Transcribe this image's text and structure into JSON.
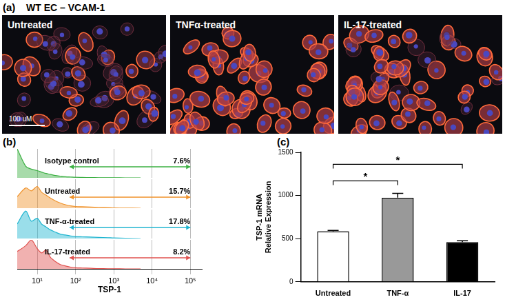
{
  "panel_a": {
    "panel_label": "(a)",
    "title": "WT EC – VCAM-1",
    "images": [
      "Untreated",
      "TNFα-treated",
      "IL-17-treated"
    ],
    "scale_bar": "100 uM"
  },
  "chart_data": [
    {
      "type": "line",
      "panel_label": "(b)",
      "x_label": "TSP-1",
      "log": "x",
      "xlim": [
        3,
        200000
      ],
      "xticks": [
        {
          "value": 10,
          "label": "10¹"
        },
        {
          "value": 100,
          "label": "10²"
        },
        {
          "value": 1000,
          "label": "10³"
        },
        {
          "value": 10000,
          "label": "10⁴"
        },
        {
          "value": 100000,
          "label": "10⁵"
        }
      ],
      "ylim": [
        0,
        100
      ],
      "tick_labels": "x",
      "grid": true,
      "x": [
        3,
        5,
        7,
        10,
        13,
        17,
        22,
        30,
        40,
        55,
        75,
        100,
        150,
        250,
        400,
        700,
        1000,
        2000,
        5000
      ],
      "series": [
        {
          "name": "Isotype control",
          "color": "#3cb043",
          "values": [
            100,
            40,
            30,
            25,
            20,
            15,
            12,
            8,
            6,
            4,
            3,
            2,
            1.5,
            1,
            0.5,
            0.3,
            0.2,
            0,
            0
          ],
          "gate": [
            70,
            100000
          ],
          "gate_percent": {
            "value": 7.6,
            "label": "7.6%"
          }
        },
        {
          "name": "Untreated",
          "color": "#f0932b",
          "values": [
            40,
            70,
            60,
            75,
            55,
            45,
            35,
            25,
            18,
            12,
            8,
            6,
            5,
            4,
            3,
            2,
            1,
            0.5,
            0
          ],
          "gate": [
            70,
            100000
          ],
          "gate_percent": {
            "value": 15.7,
            "label": "15.7%"
          }
        },
        {
          "name": "TNF-α-treated",
          "color": "#1fb5d0",
          "values": [
            50,
            95,
            60,
            70,
            50,
            40,
            30,
            22,
            15,
            12,
            9,
            7,
            6,
            5,
            4,
            3,
            2,
            1,
            0
          ],
          "gate": [
            70,
            100000
          ],
          "gate_percent": {
            "value": 17.8,
            "label": "17.8%"
          }
        },
        {
          "name": "IL-17-treated",
          "color": "#e0524f",
          "values": [
            60,
            80,
            100,
            70,
            55,
            65,
            40,
            25,
            15,
            10,
            6,
            4,
            3,
            2,
            1,
            0.5,
            0.3,
            0,
            0
          ],
          "gate": [
            70,
            100000
          ],
          "gate_percent": {
            "value": 8.2,
            "label": "8.2%"
          }
        }
      ]
    },
    {
      "type": "bar",
      "panel_label": "(c)",
      "y_label": [
        "TSP-1 mRNA",
        "Relative Expression"
      ],
      "categories": [
        "Untreated",
        "TNF-α",
        "IL-17"
      ],
      "values": [
        585,
        975,
        460
      ],
      "errors": [
        10,
        50,
        15
      ],
      "colors": [
        "#ffffff",
        "#999999",
        "#000000"
      ],
      "ylim": [
        0,
        1500
      ],
      "yticks": [
        0,
        500,
        1000,
        1500
      ],
      "grid": false,
      "significance": [
        {
          "from": "Untreated",
          "to": "TNF-α",
          "label": "*"
        },
        {
          "from": "Untreated",
          "to": "IL-17",
          "label": "*"
        }
      ]
    }
  ]
}
